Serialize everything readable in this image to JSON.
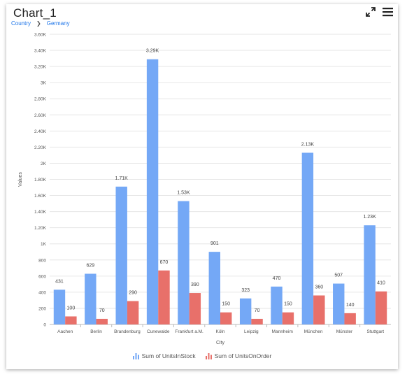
{
  "header": {
    "title": "Chart_1",
    "breadcrumb": [
      "Country",
      "Germany"
    ],
    "tools": [
      {
        "name": "expand-icon"
      },
      {
        "name": "menu-icon"
      }
    ]
  },
  "legend": {
    "items": [
      "Sum of UnitsInStock",
      "Sum of UnitsOnOrder"
    ]
  },
  "colors": {
    "series1": "#74a8f6",
    "series2": "#e8706a",
    "grid": "#e6e6e6",
    "axis_text": "#555555"
  },
  "chart_data": {
    "type": "bar",
    "title": "",
    "xlabel": "City",
    "ylabel": "Values",
    "ylim": [
      0,
      3600
    ],
    "yticks": [
      "0",
      "200",
      "400",
      "600",
      "800",
      "1K",
      "1.20K",
      "1.40K",
      "1.60K",
      "1.80K",
      "2K",
      "2.20K",
      "2.40K",
      "2.60K",
      "2.80K",
      "3K",
      "3.20K",
      "3.40K",
      "3.60K"
    ],
    "categories": [
      "Aachen",
      "Berlin",
      "Brandenburg",
      "Cunewalde",
      "Frankfurt a.M.",
      "Köln",
      "Leipzig",
      "Mannheim",
      "München",
      "Münster",
      "Stuttgart"
    ],
    "series": [
      {
        "name": "Sum of UnitsInStock",
        "values": [
          431,
          629,
          1710,
          3290,
          1530,
          901,
          323,
          470,
          2130,
          507,
          1230
        ],
        "labels": [
          "431",
          "629",
          "1.71K",
          "3.29K",
          "1.53K",
          "901",
          "323",
          "470",
          "2.13K",
          "507",
          "1.23K"
        ]
      },
      {
        "name": "Sum of UnitsOnOrder",
        "values": [
          100,
          70,
          290,
          670,
          390,
          150,
          70,
          150,
          360,
          140,
          410
        ],
        "labels": [
          "100",
          "70",
          "290",
          "670",
          "390",
          "150",
          "70",
          "150",
          "360",
          "140",
          "410"
        ]
      }
    ]
  }
}
